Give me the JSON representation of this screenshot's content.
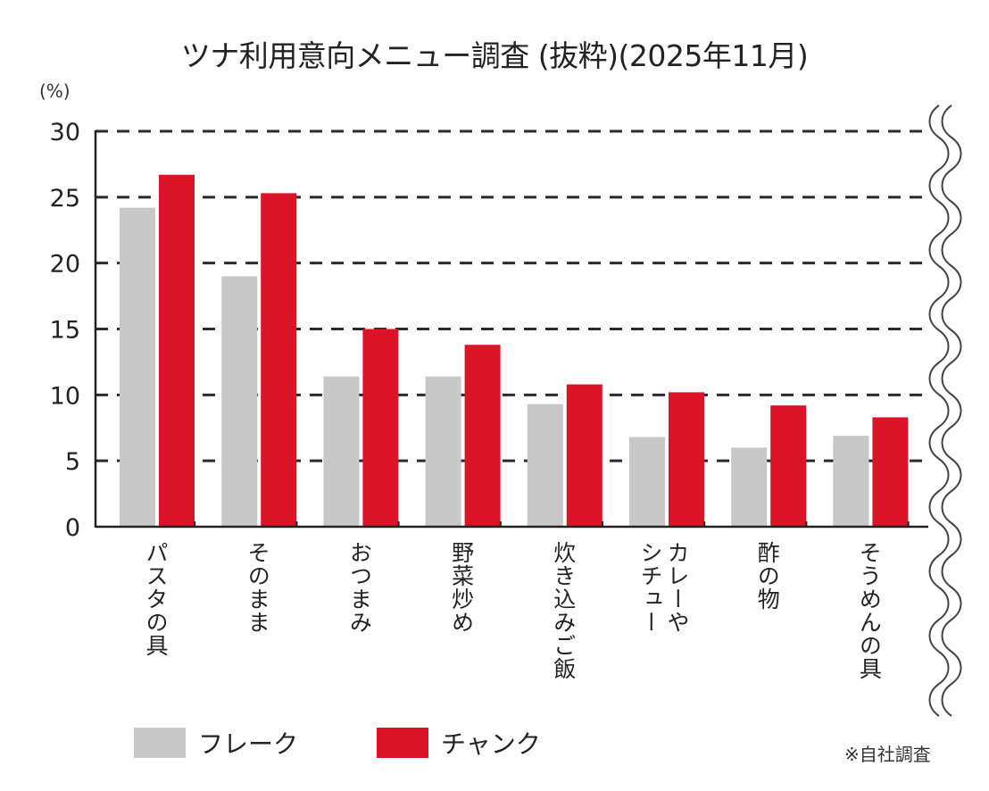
{
  "chart_data": {
    "type": "bar",
    "title": "ツナ利用意向メニュー調査 (抜粋)(2025年11月)",
    "ylabel": "(%)",
    "xlabel": "",
    "ylim": [
      0,
      30
    ],
    "yticks": [
      0,
      5,
      10,
      15,
      20,
      25,
      30
    ],
    "grid": "dashed-horizontal",
    "legend_position": "bottom-left",
    "categories": [
      "パスタの具",
      "そのまま",
      "おつまみ",
      "野菜炒め",
      "炊き込みご飯",
      "カレーや\nシチュー",
      "酢の物",
      "そうめんの具"
    ],
    "series": [
      {
        "name": "フレーク",
        "color": "#c8c8c8",
        "values": [
          24.2,
          19.0,
          11.4,
          11.4,
          9.3,
          6.8,
          6.0,
          6.9
        ]
      },
      {
        "name": "チャンク",
        "color": "#dc1428",
        "values": [
          26.7,
          25.3,
          15.0,
          13.8,
          10.8,
          10.2,
          9.2,
          8.3
        ]
      }
    ],
    "note": "※自社調査",
    "axis_break": "right-side wavy break"
  }
}
